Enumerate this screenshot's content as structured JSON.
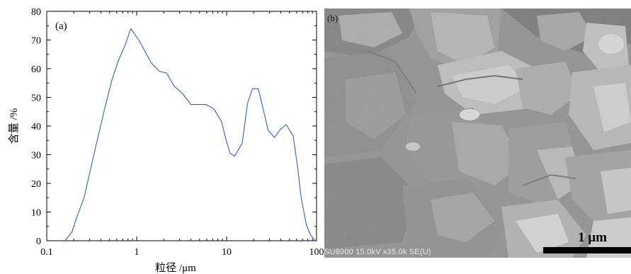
{
  "chart_data": {
    "type": "line",
    "panel_label": "(a)",
    "xlabel": "粒径 /μm",
    "ylabel": "含量 /%",
    "xscale": "log",
    "xlim": [
      0.1,
      100
    ],
    "ylim": [
      0,
      80
    ],
    "x_ticks": [
      0.1,
      1,
      10,
      100
    ],
    "x_tick_labels": [
      "0.1",
      "1",
      "10",
      "100"
    ],
    "y_ticks": [
      0,
      10,
      20,
      30,
      40,
      50,
      60,
      70,
      80
    ],
    "y_tick_labels": [
      "0",
      "10",
      "20",
      "30",
      "40",
      "50",
      "60",
      "70",
      "80"
    ],
    "grid": false,
    "series": [
      {
        "color": "#3a5fae",
        "x": [
          0.16,
          0.19,
          0.215,
          0.26,
          0.34,
          0.44,
          0.53,
          0.62,
          0.74,
          0.86,
          1.08,
          1.45,
          1.8,
          2.15,
          2.6,
          3.3,
          4.0,
          4.9,
          5.9,
          7.2,
          8.8,
          9.9,
          10.9,
          12.3,
          14.9,
          17.1,
          19.4,
          22.5,
          25.5,
          29.0,
          34.0,
          40.0,
          46.0,
          55.0,
          62.0,
          67.0,
          77.0,
          86.0,
          97.0
        ],
        "y": [
          0,
          3,
          8,
          15,
          31,
          46,
          56,
          62.5,
          68,
          74,
          69.5,
          62,
          59,
          58.5,
          54,
          51,
          47.5,
          47.5,
          47.5,
          46,
          41.5,
          35,
          30.5,
          29.5,
          34,
          48,
          53,
          53,
          46,
          38.5,
          36,
          39,
          40.5,
          36.5,
          25,
          15.5,
          5.5,
          2,
          0
        ]
      }
    ]
  },
  "sem": {
    "label": "b",
    "footer_text": "SU8000 15.0kV x35.0k SE(U)",
    "scale_label": "1 μm"
  }
}
